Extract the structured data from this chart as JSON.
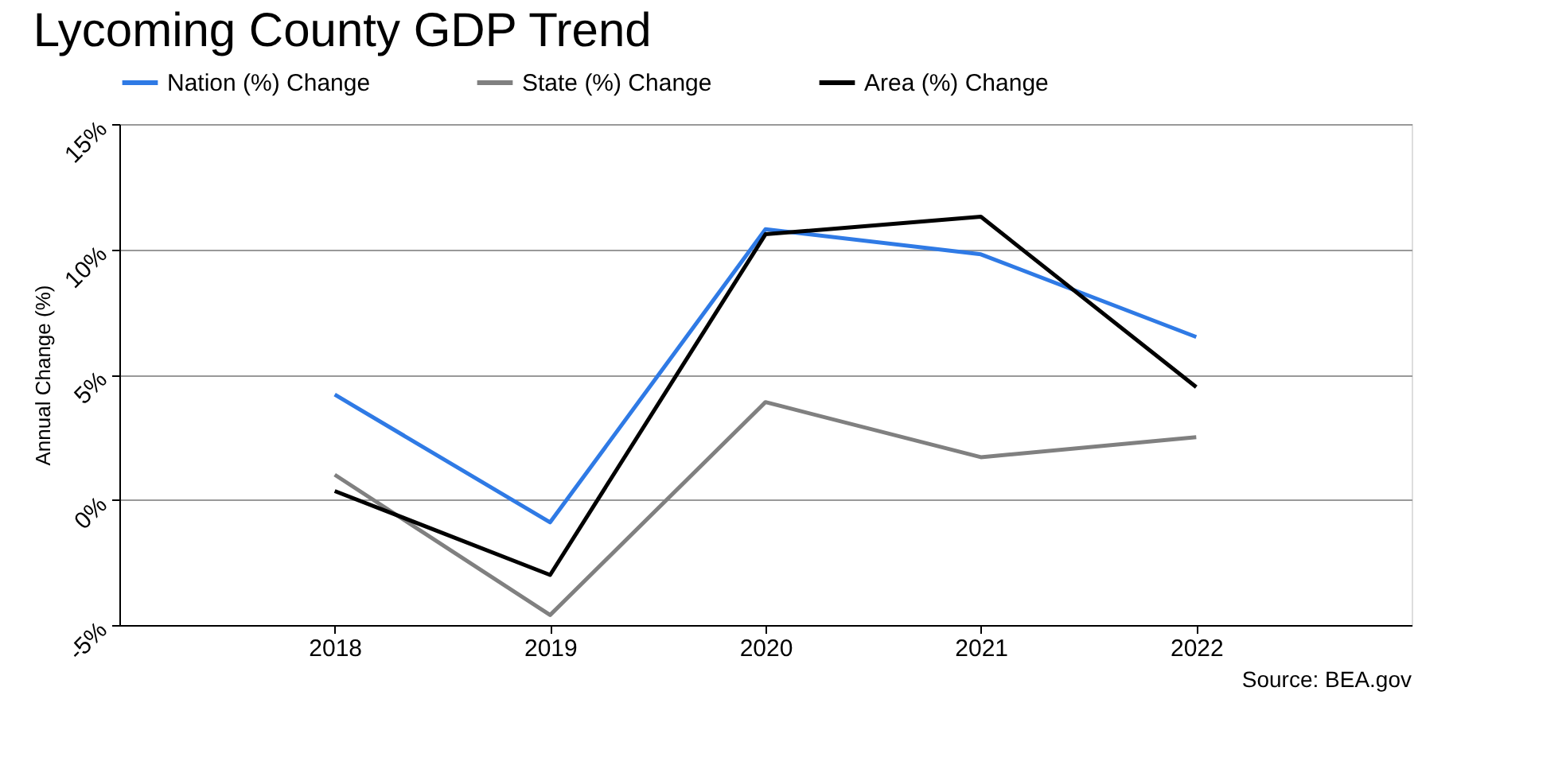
{
  "chart_data": {
    "type": "line",
    "title": "Lycoming County GDP Trend",
    "ylabel": "Annual Change (%)",
    "categories": [
      "2018",
      "2019",
      "2020",
      "2021",
      "2022"
    ],
    "series": [
      {
        "name": "Nation (%) Change",
        "color": "#2f7ae5",
        "values": [
          4.2,
          -0.9,
          10.8,
          9.8,
          6.5
        ]
      },
      {
        "name": "State (%) Change",
        "color": "#808080",
        "values": [
          1.0,
          -4.6,
          3.9,
          1.7,
          2.5
        ]
      },
      {
        "name": "Area (%) Change",
        "color": "#000000",
        "values": [
          0.35,
          -3.0,
          10.6,
          11.3,
          4.5
        ]
      }
    ],
    "ylim": [
      -5,
      15
    ],
    "yticks": [
      {
        "value": -5,
        "label": "-5%"
      },
      {
        "value": 0,
        "label": "0%"
      },
      {
        "value": 5,
        "label": "5%"
      },
      {
        "value": 10,
        "label": "10%"
      },
      {
        "value": 15,
        "label": "15%"
      }
    ],
    "grid": "y",
    "legend": "top",
    "marker": "none",
    "line_style": "solid",
    "annotations": [
      "Source: BEA.gov"
    ]
  }
}
